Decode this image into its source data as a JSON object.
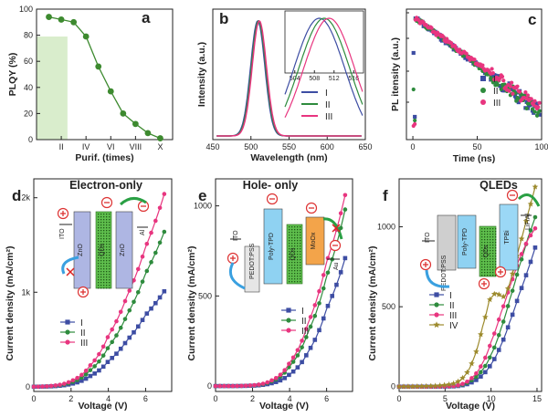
{
  "colors": {
    "I": "#3d4da3",
    "II": "#2e8b3d",
    "III": "#e8357f",
    "IV": "#9c8a2c",
    "a_line": "#3d8a2f",
    "a_shade": "#d9edcc"
  },
  "panels": {
    "a": {
      "label": "a",
      "xlabel": "Purif. (times)",
      "ylabel": "PLQY (%)"
    },
    "b": {
      "label": "b",
      "xlabel": "Wavelength (nm)",
      "ylabel": "Intensity (a.u.)",
      "legend": [
        "I",
        "II",
        "III"
      ]
    },
    "c": {
      "label": "c",
      "xlabel": "Time (ns)",
      "ylabel": "PL itensity (a.u.)",
      "legend": [
        "I",
        "II",
        "III"
      ]
    },
    "d": {
      "label": "d",
      "title": "Electron-only",
      "xlabel": "Voltage (V)",
      "ylabel": "Current density (mA/cm²)",
      "legend": [
        "I",
        "II",
        "III"
      ],
      "device": [
        "ITO",
        "ZnO",
        "QDs",
        "ZnO",
        "Al"
      ]
    },
    "e": {
      "label": "e",
      "title": "Hole- only",
      "xlabel": "Voltage (V)",
      "ylabel": "Current density (mA/cm²)",
      "legend": [
        "I",
        "II",
        "III"
      ],
      "device": [
        "ITO",
        "PEDOT:PSS",
        "Poly-TPD",
        "QDs",
        "MoOx",
        "Au"
      ]
    },
    "f": {
      "label": "f",
      "title": "QLEDs",
      "xlabel": "Voltage (V)",
      "ylabel": "Current density (mA/cm²)",
      "legend": [
        "I",
        "II",
        "III",
        "IV"
      ],
      "device": [
        "ITO",
        "PEDOT:PSS",
        "Poly-TPD",
        "QDs",
        "TPBi",
        "LiF/Al"
      ]
    }
  },
  "chart_data": [
    {
      "panel": "a",
      "type": "line",
      "xlabel": "Purif. (times)",
      "ylabel": "PLQY (%)",
      "xlim": [
        0,
        11
      ],
      "ylim": [
        0,
        100
      ],
      "xticks": [
        "II",
        "IV",
        "VI",
        "VIII",
        "X"
      ],
      "yticks": [
        0,
        20,
        40,
        60,
        80,
        100
      ],
      "x": [
        1,
        2,
        3,
        4,
        5,
        6,
        7,
        8,
        9,
        10
      ],
      "y": [
        94,
        92,
        90,
        79,
        56,
        37,
        20,
        12,
        5,
        1
      ],
      "shaded_x": [
        0,
        2.5
      ],
      "shaded_y": [
        0,
        79
      ]
    },
    {
      "panel": "b",
      "type": "line",
      "xlabel": "Wavelength (nm)",
      "ylabel": "Intensity (a.u.)",
      "xlim": [
        450,
        650
      ],
      "xticks": [
        450,
        500,
        550,
        600,
        650
      ],
      "series": [
        {
          "name": "I",
          "peak_nm": 509,
          "fwhm_nm": 22
        },
        {
          "name": "II",
          "peak_nm": 510,
          "fwhm_nm": 22
        },
        {
          "name": "III",
          "peak_nm": 511,
          "fwhm_nm": 22
        }
      ],
      "inset": {
        "xlim": [
          502,
          518
        ],
        "xticks": [
          504,
          508,
          512,
          516
        ],
        "peaks_nm": [
          509,
          510,
          511
        ]
      }
    },
    {
      "panel": "c",
      "type": "scatter",
      "xlabel": "Time (ns)",
      "ylabel": "PL itensity (a.u.)",
      "xlim": [
        -5,
        100
      ],
      "yscale": "log",
      "xticks": [
        0,
        50,
        100
      ],
      "series": [
        {
          "name": "I",
          "decay_ns": 22
        },
        {
          "name": "II",
          "decay_ns": 22
        },
        {
          "name": "III",
          "decay_ns": 23
        }
      ]
    },
    {
      "panel": "d",
      "type": "line",
      "xlabel": "Voltage (V)",
      "ylabel": "Current density (mA/cm²)",
      "xlim": [
        0,
        7.4
      ],
      "ylim": [
        -50,
        2200
      ],
      "xticks": [
        0,
        2,
        4,
        6
      ],
      "yticks": [
        "0",
        "1k",
        "2k"
      ],
      "series": [
        {
          "name": "I",
          "points": [
            [
              0,
              0
            ],
            [
              1,
              5
            ],
            [
              2,
              30
            ],
            [
              3,
              110
            ],
            [
              4,
              270
            ],
            [
              5,
              490
            ],
            [
              6,
              760
            ],
            [
              7,
              1010
            ]
          ]
        },
        {
          "name": "II",
          "points": [
            [
              0,
              0
            ],
            [
              1,
              8
            ],
            [
              2,
              45
            ],
            [
              3,
              170
            ],
            [
              4,
              420
            ],
            [
              5,
              760
            ],
            [
              6,
              1200
            ],
            [
              7,
              1640
            ]
          ]
        },
        {
          "name": "III",
          "points": [
            [
              0,
              0
            ],
            [
              1,
              10
            ],
            [
              2,
              60
            ],
            [
              3,
              220
            ],
            [
              4,
              540
            ],
            [
              5,
              960
            ],
            [
              6,
              1480
            ],
            [
              7,
              2040
            ]
          ]
        }
      ]
    },
    {
      "panel": "e",
      "type": "line",
      "xlabel": "Voltage (V)",
      "ylabel": "Current density (mA/cm²)",
      "xlim": [
        0,
        7.4
      ],
      "ylim": [
        -30,
        1150
      ],
      "xticks": [
        0,
        2,
        4,
        6
      ],
      "yticks": [
        0,
        500,
        1000
      ],
      "series": [
        {
          "name": "I",
          "points": [
            [
              0,
              0
            ],
            [
              1,
              0
            ],
            [
              2,
              2
            ],
            [
              3,
              15
            ],
            [
              4,
              65
            ],
            [
              5,
              190
            ],
            [
              6,
              430
            ],
            [
              7,
              710
            ]
          ]
        },
        {
          "name": "II",
          "points": [
            [
              0,
              0
            ],
            [
              1,
              0
            ],
            [
              2,
              3
            ],
            [
              3,
              25
            ],
            [
              4,
              110
            ],
            [
              5,
              300
            ],
            [
              6,
              610
            ],
            [
              7,
              980
            ]
          ]
        },
        {
          "name": "III",
          "points": [
            [
              0,
              0
            ],
            [
              1,
              0
            ],
            [
              2,
              4
            ],
            [
              3,
              30
            ],
            [
              4,
              130
            ],
            [
              5,
              350
            ],
            [
              6,
              690
            ],
            [
              7,
              1060
            ]
          ]
        }
      ]
    },
    {
      "panel": "f",
      "type": "line",
      "xlabel": "Voltage (V)",
      "ylabel": "Current density (mA/cm²)",
      "xlim": [
        0,
        15.5
      ],
      "ylim": [
        -30,
        1300
      ],
      "xticks": [
        0,
        5,
        10,
        15
      ],
      "yticks": [
        0,
        500,
        1000
      ],
      "series": [
        {
          "name": "I",
          "points": [
            [
              0,
              0
            ],
            [
              4,
              0
            ],
            [
              6,
              2
            ],
            [
              7,
              10
            ],
            [
              8,
              30
            ],
            [
              9,
              70
            ],
            [
              10,
              140
            ],
            [
              11,
              250
            ],
            [
              12,
              400
            ],
            [
              13,
              570
            ],
            [
              14,
              730
            ],
            [
              14.8,
              870
            ]
          ]
        },
        {
          "name": "II",
          "points": [
            [
              0,
              0
            ],
            [
              4,
              0
            ],
            [
              6,
              3
            ],
            [
              7,
              15
            ],
            [
              8,
              45
            ],
            [
              9,
              100
            ],
            [
              10,
              200
            ],
            [
              11,
              350
            ],
            [
              12,
              540
            ],
            [
              13,
              740
            ],
            [
              14,
              930
            ],
            [
              14.8,
              1060
            ]
          ]
        },
        {
          "name": "III",
          "points": [
            [
              0,
              0
            ],
            [
              4,
              0
            ],
            [
              6,
              4
            ],
            [
              7,
              20
            ],
            [
              8,
              60
            ],
            [
              9,
              140
            ],
            [
              10,
              280
            ],
            [
              11,
              450
            ],
            [
              12,
              620
            ],
            [
              13,
              790
            ],
            [
              14,
              920
            ],
            [
              14.8,
              990
            ]
          ]
        },
        {
          "name": "IV",
          "points": [
            [
              0,
              0
            ],
            [
              4,
              5
            ],
            [
              6,
              20
            ],
            [
              7,
              60
            ],
            [
              8,
              160
            ],
            [
              9,
              360
            ],
            [
              9.8,
              540
            ],
            [
              10.5,
              590
            ],
            [
              11,
              570
            ],
            [
              11.5,
              560
            ],
            [
              12,
              640
            ],
            [
              13,
              860
            ],
            [
              14,
              1080
            ],
            [
              14.8,
              1250
            ]
          ]
        }
      ]
    }
  ]
}
